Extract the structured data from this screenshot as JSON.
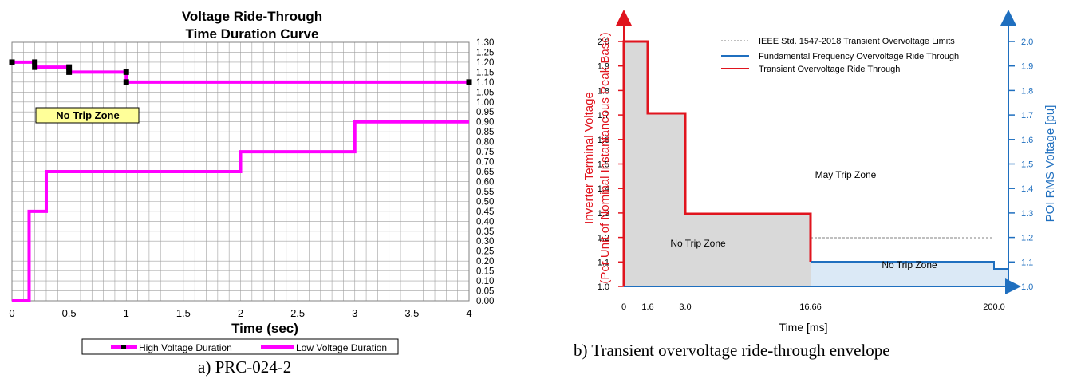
{
  "chart_data": [
    {
      "type": "line",
      "title": "Voltage Ride-Through",
      "subtitle": "Time Duration Curve",
      "xlabel": "Time (sec)",
      "ylabel": "",
      "xlim": [
        0,
        4
      ],
      "ylim": [
        0,
        1.3
      ],
      "x_ticks": [
        "0",
        "0.5",
        "1",
        "1.5",
        "2",
        "2.5",
        "3",
        "3.5",
        "4"
      ],
      "y_ticks": [
        "0.00",
        "0.05",
        "0.10",
        "0.15",
        "0.20",
        "0.25",
        "0.30",
        "0.35",
        "0.40",
        "0.45",
        "0.50",
        "0.55",
        "0.60",
        "0.65",
        "0.70",
        "0.75",
        "0.80",
        "0.85",
        "0.90",
        "0.95",
        "1.00",
        "1.05",
        "1.10",
        "1.15",
        "1.20",
        "1.25",
        "1.30"
      ],
      "grid": true,
      "legend_position": "bottom",
      "series": [
        {
          "name": "High Voltage Duration",
          "color": "#ff00ff",
          "markers": true,
          "x": [
            0,
            0.2,
            0.2,
            0.5,
            0.5,
            1.0,
            1.0,
            4.0
          ],
          "y": [
            1.2,
            1.2,
            1.175,
            1.175,
            1.15,
            1.15,
            1.1,
            1.1
          ]
        },
        {
          "name": "Low Voltage Duration",
          "color": "#ff00ff",
          "markers": false,
          "x": [
            0,
            0.15,
            0.15,
            0.3,
            0.3,
            2.0,
            2.0,
            3.0,
            3.0,
            4.0
          ],
          "y": [
            0,
            0,
            0.45,
            0.45,
            0.65,
            0.65,
            0.75,
            0.75,
            0.9,
            0.9
          ]
        }
      ],
      "annotations": [
        {
          "text": "No Trip Zone",
          "x": 0.45,
          "y": 0.995
        }
      ],
      "caption": "a) PRC-024-2"
    },
    {
      "type": "line",
      "title": "",
      "xlabel": "Time [ms]",
      "ylabel": "Inverter Terminal Voltage",
      "ylabel2": "(Per Unit of Nominal Instantaneous Peak Base)",
      "ylabel_right": "POI RMS Voltage [pu]",
      "ylim": [
        1.0,
        2.0
      ],
      "x_ticks": [
        "0",
        "1.6",
        "3.0",
        "16.66",
        "200.0"
      ],
      "y_ticks": [
        "1.0",
        "1.1",
        "1.2",
        "1.3",
        "1.4",
        "1.5",
        "1.6",
        "1.7",
        "1.8",
        "1.9",
        "2.0"
      ],
      "grid": false,
      "legend_position": "top-right",
      "series": [
        {
          "name": "IEEE Std. 1547-2018 Transient Overvoltage Limits",
          "color": "#808080",
          "style": "dashed",
          "x": [
            16.66,
            200.0
          ],
          "y": [
            1.3,
            1.3
          ]
        },
        {
          "name": "Fundamental Frequency Overvoltage Ride Through",
          "color": "#1f6fbf",
          "style": "solid",
          "x": [
            16.66,
            200.0,
            200.0,
            "end"
          ],
          "y": [
            1.2,
            1.2,
            1.17,
            1.17
          ]
        },
        {
          "name": "Transient Overvoltage Ride Through",
          "color": "#e0141e",
          "style": "solid",
          "x": [
            0,
            0,
            1.6,
            1.6,
            3.0,
            3.0,
            16.66,
            16.66
          ],
          "y": [
            1.0,
            2.0,
            2.0,
            1.7,
            1.7,
            1.4,
            1.4,
            1.2
          ]
        }
      ],
      "annotations": [
        {
          "text": "May Trip Zone"
        },
        {
          "text": "No Trip Zone"
        },
        {
          "text": "No Trip Zone"
        }
      ],
      "caption": "b) Transient overvoltage ride-through envelope"
    }
  ]
}
